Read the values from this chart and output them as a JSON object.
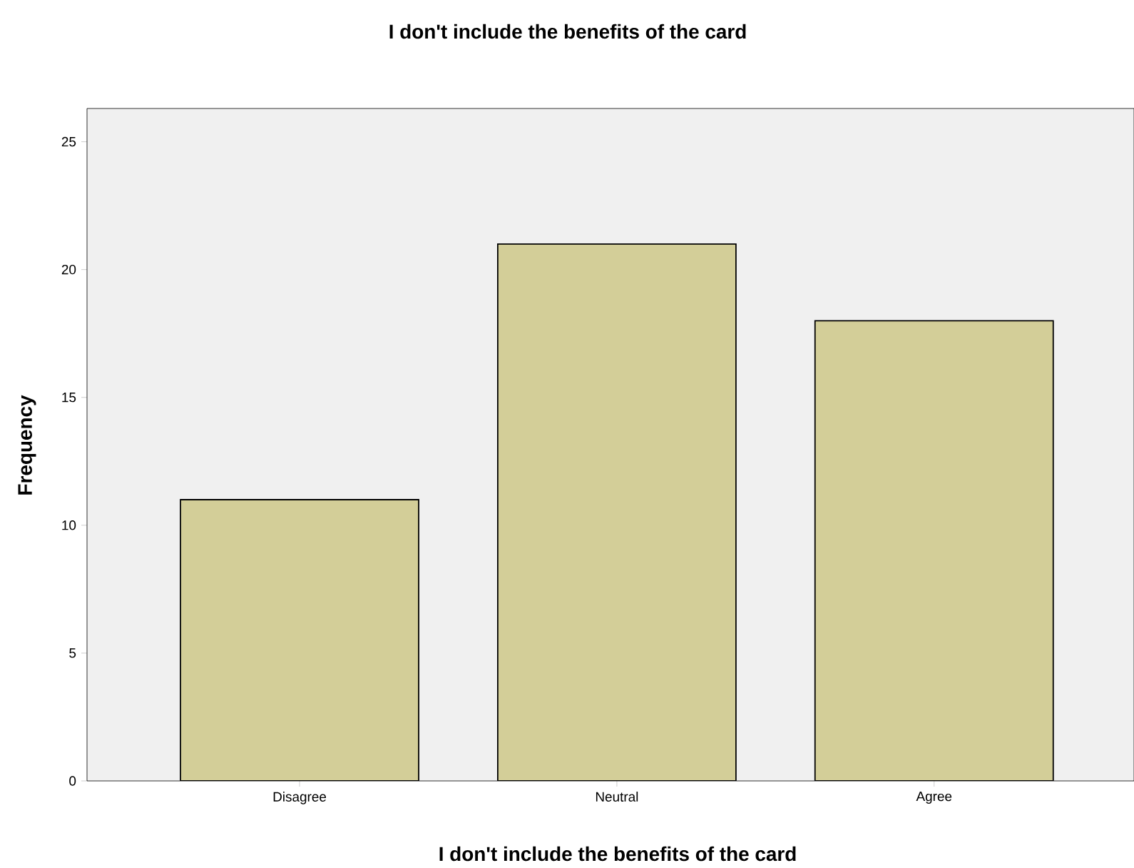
{
  "chart_data": {
    "type": "bar",
    "title": "I don't include the benefits of the card",
    "xlabel": "I don't include the benefits of the card",
    "ylabel": "Frequency",
    "categories": [
      "Disagree",
      "Neutral",
      "Agree"
    ],
    "values": [
      11,
      21,
      18
    ],
    "color": "#d3ce98",
    "ylim": [
      0,
      26.3
    ],
    "yticks": [
      0,
      5,
      10,
      15,
      20,
      25
    ]
  }
}
